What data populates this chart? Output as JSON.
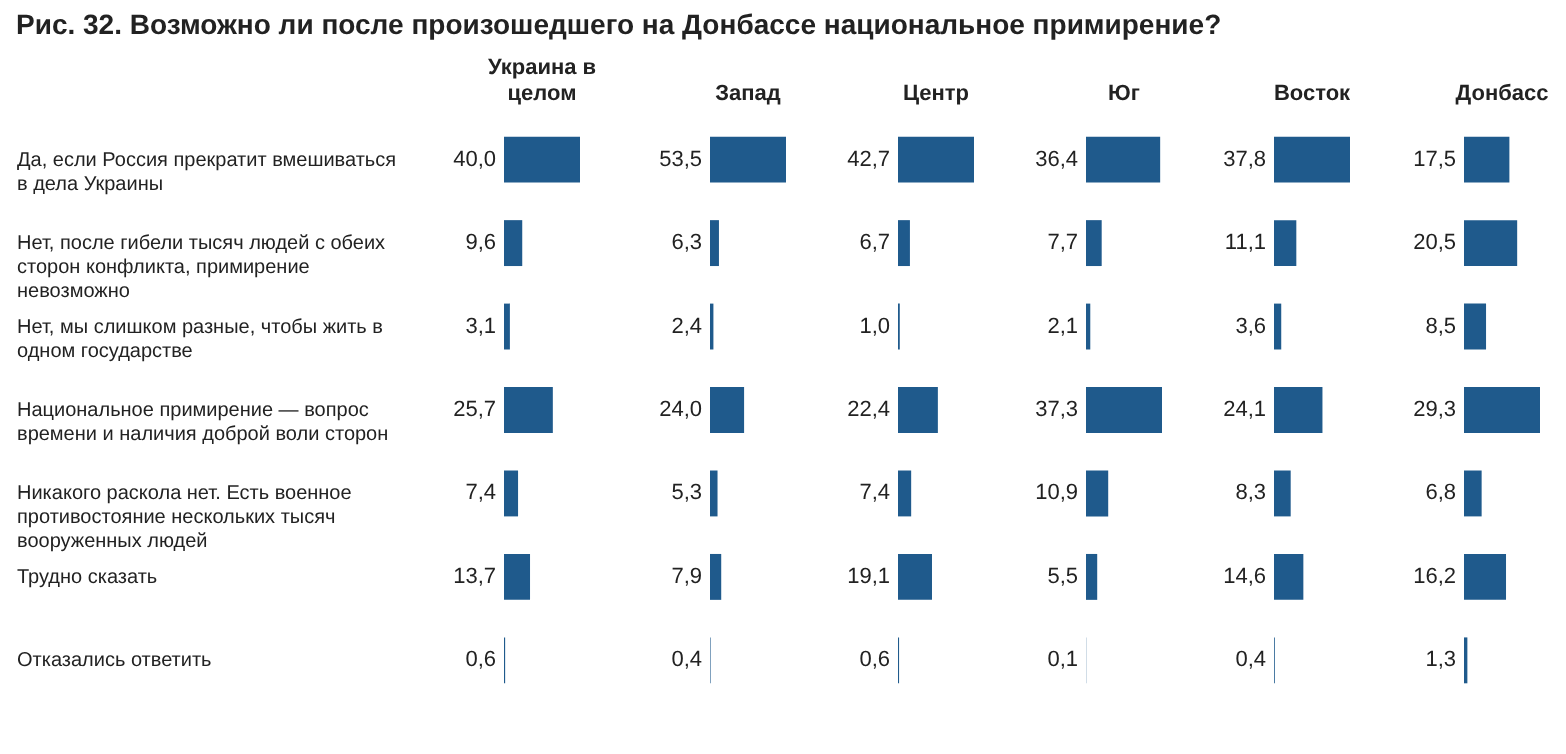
{
  "chart_data": [
    {
      "type": "bar",
      "orientation": "horizontal",
      "title": "Украина в целом",
      "annotations": [
        "Рис. 32. Возможно ли после произошедшего на Донбассе национальное примирение?"
      ],
      "tick_labels": "y",
      "color": "#1f5a8c",
      "categories": [
        "Да, если Россия прекратит вмешиваться в дела Украины",
        "Нет, после гибели тысяч людей с обеих сторон конфликта, примирение невозможно",
        "Нет, мы слишком разные, чтобы жить в одном государстве",
        "Национальное примирение — вопрос времени и наличия доброй воли сторон",
        "Никакого раскола нет. Есть военное противостояние нескольких тысяч вооруженных людей",
        "Трудно сказать",
        "Отказались ответить"
      ],
      "values": [
        40.0,
        9.6,
        3.1,
        25.7,
        7.4,
        13.7,
        0.6
      ],
      "value_labels": [
        "40,0",
        "9,6",
        "3,1",
        "25,7",
        "7,4",
        "13,7",
        "0,6"
      ]
    },
    {
      "type": "bar",
      "orientation": "horizontal",
      "title": "Запад",
      "tick_labels": false,
      "color": "#1f5a8c",
      "categories": [
        null,
        null,
        null,
        null,
        null,
        null,
        null
      ],
      "values": [
        53.5,
        6.3,
        2.4,
        24.0,
        5.3,
        7.9,
        0.4
      ],
      "value_labels": [
        "53,5",
        "6,3",
        "2,4",
        "24,0",
        "5,3",
        "7,9",
        "0,4"
      ]
    },
    {
      "type": "bar",
      "orientation": "horizontal",
      "title": "Центр",
      "tick_labels": false,
      "color": "#1f5a8c",
      "categories": [
        null,
        null,
        null,
        null,
        null,
        null,
        null
      ],
      "values": [
        42.7,
        6.7,
        1.0,
        22.4,
        7.4,
        19.1,
        0.6
      ],
      "value_labels": [
        "42,7",
        "6,7",
        "1,0",
        "22,4",
        "7,4",
        "19,1",
        "0,6"
      ]
    },
    {
      "type": "bar",
      "orientation": "horizontal",
      "title": "Юг",
      "tick_labels": false,
      "color": "#1f5a8c",
      "categories": [
        null,
        null,
        null,
        null,
        null,
        null,
        null
      ],
      "values": [
        36.4,
        7.7,
        2.1,
        37.3,
        10.9,
        5.5,
        0.1
      ],
      "value_labels": [
        "36,4",
        "7,7",
        "2,1",
        "37,3",
        "10,9",
        "5,5",
        "0,1"
      ]
    },
    {
      "type": "bar",
      "orientation": "horizontal",
      "title": "Восток",
      "tick_labels": false,
      "color": "#1f5a8c",
      "categories": [
        null,
        null,
        null,
        null,
        null,
        null,
        null
      ],
      "values": [
        37.8,
        11.1,
        3.6,
        24.1,
        8.3,
        14.6,
        0.4
      ],
      "value_labels": [
        "37,8",
        "11,1",
        "3,6",
        "24,1",
        "8,3",
        "14,6",
        "0,4"
      ]
    },
    {
      "type": "bar",
      "orientation": "horizontal",
      "title": "Донбасс",
      "tick_labels": false,
      "color": "#1f5a8c",
      "categories": [
        null,
        null,
        null,
        null,
        null,
        null,
        null
      ],
      "values": [
        17.5,
        20.5,
        8.5,
        29.3,
        6.8,
        16.2,
        1.3
      ],
      "value_labels": [
        "17,5",
        "20,5",
        "8,5",
        "29,3",
        "6,8",
        "16,2",
        "1,3"
      ]
    }
  ]
}
